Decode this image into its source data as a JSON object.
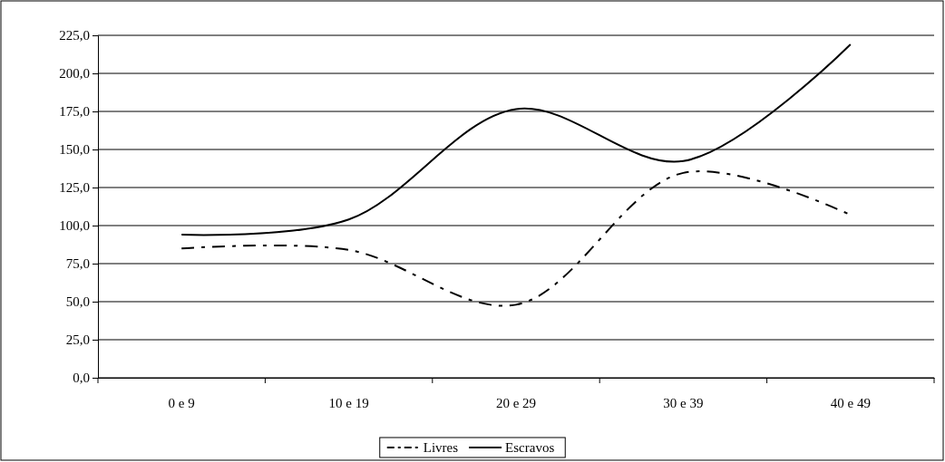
{
  "chart_data": {
    "type": "line",
    "categories": [
      "0 e 9",
      "10 e 19",
      "20 e 29",
      "30 e 39",
      "40 e 49"
    ],
    "series": [
      {
        "name": "Livres",
        "color": "#000000",
        "line_style": "dashed",
        "values": [
          85,
          84,
          48,
          134.6,
          107
        ]
      },
      {
        "name": "Escravos",
        "color": "#000000",
        "line_style": "solid",
        "values": [
          94,
          104,
          176.5,
          142.4,
          219
        ]
      }
    ],
    "ylim": [
      0,
      225
    ],
    "yticks": [
      {
        "value": 0,
        "label": "0,0"
      },
      {
        "value": 25,
        "label": "25,0"
      },
      {
        "value": 50,
        "label": "50,0"
      },
      {
        "value": 75,
        "label": "75,0"
      },
      {
        "value": 100,
        "label": "100,0"
      },
      {
        "value": 125,
        "label": "125,0"
      },
      {
        "value": 150,
        "label": "150,0"
      },
      {
        "value": 175,
        "label": "175,0"
      },
      {
        "value": 200,
        "label": "200,0"
      },
      {
        "value": 225,
        "label": "225,0"
      }
    ],
    "grid": "y",
    "legend": "bottom",
    "marker": "none"
  }
}
